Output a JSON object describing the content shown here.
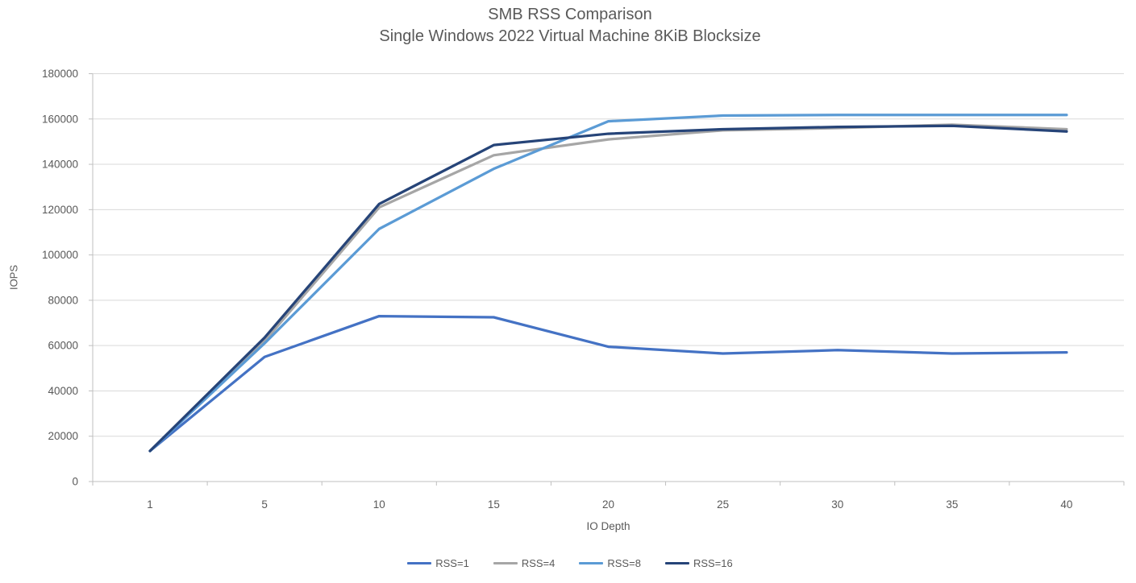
{
  "chart_data": {
    "type": "line",
    "title": "SMB RSS Comparison",
    "subtitle": "Single Windows 2022 Virtual Machine 8KiB Blocksize",
    "xlabel": "IO Depth",
    "ylabel": "IOPS",
    "categories": [
      1,
      5,
      10,
      15,
      20,
      25,
      30,
      35,
      40
    ],
    "yticks": [
      0,
      20000,
      40000,
      60000,
      80000,
      100000,
      120000,
      140000,
      160000,
      180000
    ],
    "ylim": [
      0,
      180000
    ],
    "grid": "horizontal",
    "legend_position": "bottom",
    "series": [
      {
        "name": "RSS=1",
        "color": "#4472C4",
        "values": [
          13500,
          55000,
          73000,
          72500,
          59500,
          56500,
          58000,
          56500,
          57000
        ]
      },
      {
        "name": "RSS=4",
        "color": "#A6A6A6",
        "values": [
          13500,
          62000,
          121000,
          144000,
          151000,
          155000,
          156000,
          157500,
          155500
        ]
      },
      {
        "name": "RSS=8",
        "color": "#5B9BD5",
        "values": [
          13500,
          61000,
          111500,
          138000,
          159000,
          161500,
          161800,
          161800,
          161800
        ]
      },
      {
        "name": "RSS=16",
        "color": "#264478",
        "values": [
          13500,
          63500,
          122500,
          148500,
          153500,
          155500,
          156500,
          157000,
          154500
        ]
      }
    ],
    "colors": {
      "text": "#595959",
      "gridline": "#D9D9D9",
      "axis": "#BFBFBF",
      "background": "#FFFFFF"
    }
  }
}
